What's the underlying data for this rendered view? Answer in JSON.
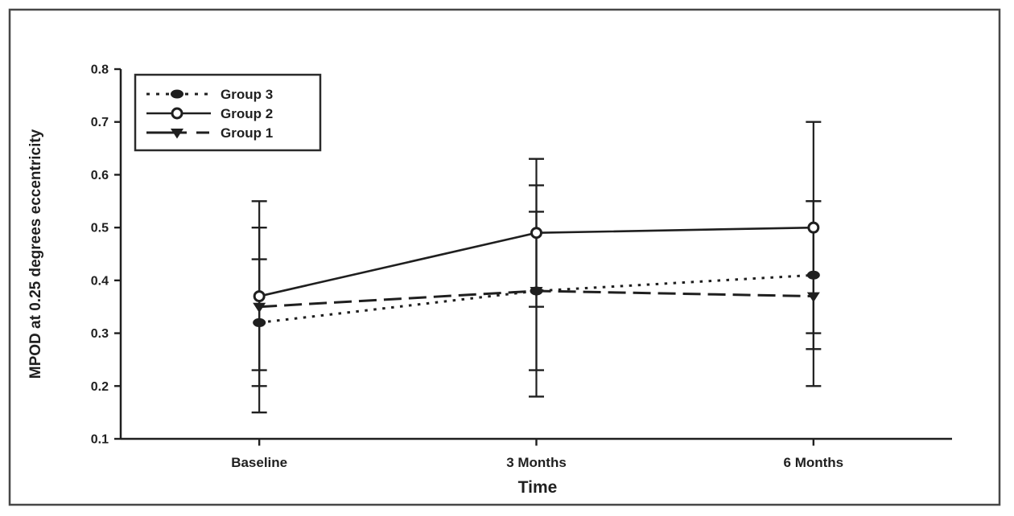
{
  "figure": {
    "background": "#ffffff",
    "border_color": "#474747",
    "ink_color": "#1f1f1f"
  },
  "chart_data": {
    "type": "line",
    "title": "",
    "xlabel": "Time",
    "ylabel": "MPOD at 0.25 degrees eccentricity",
    "categories": [
      "Baseline",
      "3 Months",
      "6 Months"
    ],
    "ylim": [
      0.1,
      0.8
    ],
    "ytick_step": 0.1,
    "ytick_labels": [
      "0.1",
      "0.2",
      "0.3",
      "0.4",
      "0.5",
      "0.6",
      "0.7",
      "0.8"
    ],
    "grid": false,
    "error_bars": true,
    "legend": {
      "position": "top-left",
      "entries": [
        "Group 3",
        "Group 2",
        "Group 1"
      ]
    },
    "series": [
      {
        "name": "Group 3",
        "line_style": "dotted",
        "marker": "filled-ellipse",
        "values": [
          0.32,
          0.38,
          0.41
        ],
        "err_lo": [
          0.15,
          0.18,
          0.27
        ],
        "err_hi": [
          0.5,
          0.58,
          0.55
        ]
      },
      {
        "name": "Group 2",
        "line_style": "solid",
        "marker": "open-circle",
        "values": [
          0.37,
          0.49,
          0.5
        ],
        "err_lo": [
          0.2,
          0.35,
          0.3
        ],
        "err_hi": [
          0.55,
          0.63,
          0.7
        ]
      },
      {
        "name": "Group 1",
        "line_style": "dashed",
        "marker": "filled-triangle-down",
        "values": [
          0.35,
          0.38,
          0.37
        ],
        "err_lo": [
          0.23,
          0.23,
          0.2
        ],
        "err_hi": [
          0.44,
          0.53,
          0.55
        ]
      }
    ],
    "z_order": [
      "Group 1",
      "Group 3",
      "Group 2"
    ]
  }
}
